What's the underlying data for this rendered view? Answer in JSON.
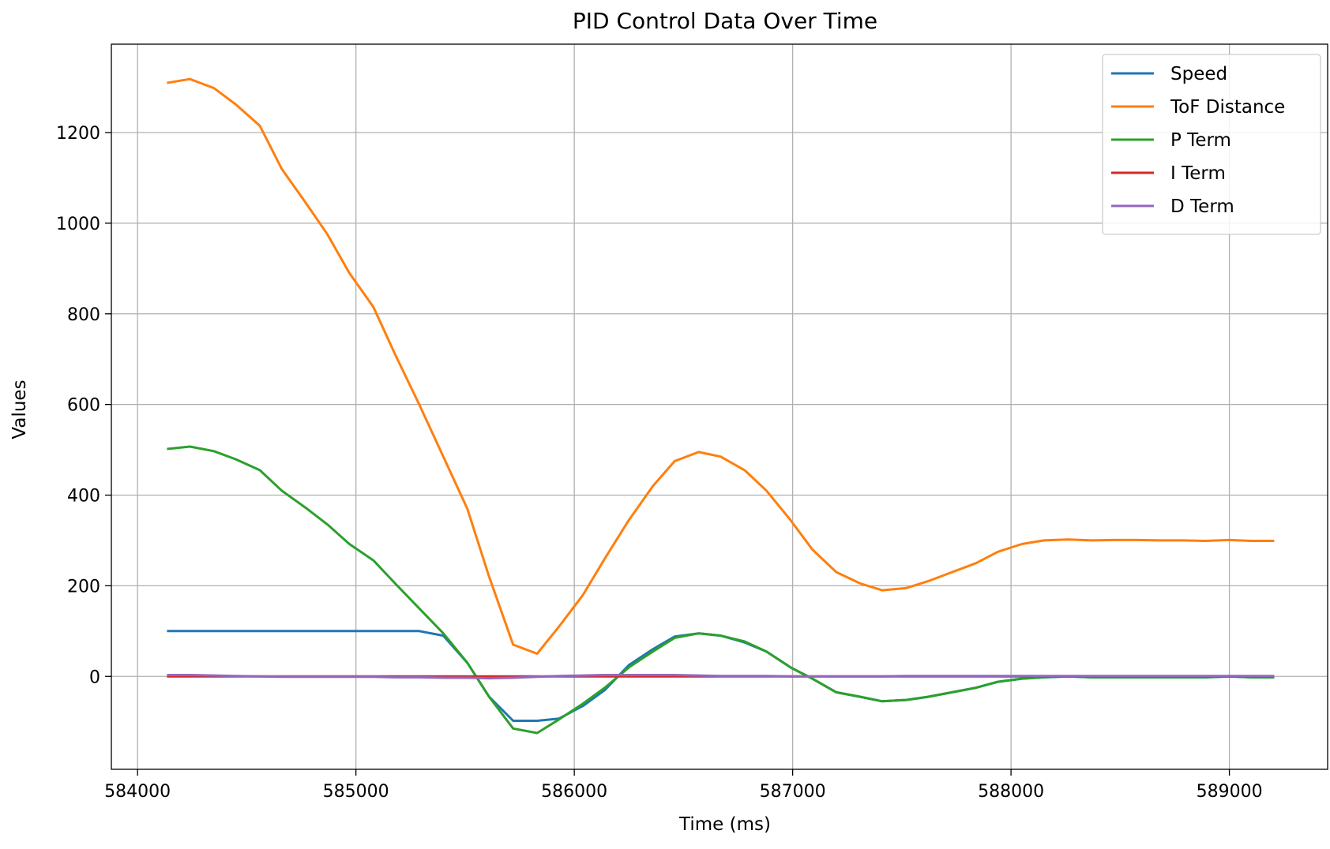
{
  "chart_data": {
    "type": "line",
    "title": "PID Control Data Over Time",
    "xlabel": "Time (ms)",
    "ylabel": "Values",
    "xlim": [
      583880,
      589450
    ],
    "ylim": [
      -205,
      1395
    ],
    "x_ticks": [
      584000,
      585000,
      586000,
      587000,
      588000,
      589000
    ],
    "y_ticks": [
      0,
      200,
      400,
      600,
      800,
      1000,
      1200
    ],
    "grid": true,
    "legend_position": "top-right",
    "x": [
      584140,
      584240,
      584350,
      584450,
      584560,
      584660,
      584770,
      584870,
      584970,
      585080,
      585180,
      585290,
      585400,
      585510,
      585610,
      585720,
      585830,
      585930,
      586040,
      586140,
      586250,
      586360,
      586460,
      586570,
      586670,
      586780,
      586880,
      586990,
      587090,
      587200,
      587310,
      587410,
      587520,
      587620,
      587730,
      587840,
      587940,
      588050,
      588150,
      588260,
      588370,
      588470,
      588580,
      588680,
      588790,
      588890,
      589000,
      589100,
      589200
    ],
    "series": [
      {
        "name": "Speed",
        "color": "#1f77b4",
        "values": [
          100,
          100,
          100,
          100,
          100,
          100,
          100,
          100,
          100,
          100,
          100,
          100,
          90,
          30,
          -45,
          -98,
          -98,
          -93,
          -65,
          -30,
          25,
          60,
          88,
          95,
          90,
          75,
          55,
          20,
          -5,
          -35,
          -45,
          -55,
          -52,
          -45,
          -35,
          -25,
          -12,
          -5,
          -2,
          0,
          -2,
          -2,
          -2,
          -2,
          -2,
          -2,
          0,
          -2,
          -2
        ]
      },
      {
        "name": "ToF Distance",
        "color": "#ff7f0e",
        "values": [
          1310,
          1318,
          1298,
          1262,
          1215,
          1120,
          1045,
          975,
          890,
          815,
          710,
          600,
          485,
          370,
          220,
          70,
          50,
          110,
          180,
          260,
          345,
          420,
          475,
          495,
          485,
          455,
          410,
          345,
          280,
          230,
          205,
          190,
          195,
          210,
          230,
          250,
          275,
          292,
          300,
          302,
          300,
          301,
          301,
          300,
          300,
          299,
          301,
          299,
          299
        ]
      },
      {
        "name": "P Term",
        "color": "#2ca02c",
        "values": [
          502,
          507,
          497,
          479,
          455,
          410,
          372,
          335,
          292,
          256,
          205,
          150,
          95,
          30,
          -45,
          -115,
          -125,
          -95,
          -60,
          -25,
          20,
          55,
          85,
          95,
          90,
          77,
          55,
          20,
          -5,
          -35,
          -45,
          -55,
          -52,
          -45,
          -35,
          -25,
          -12,
          -5,
          -2,
          0,
          -2,
          -2,
          -2,
          -2,
          -2,
          -2,
          0,
          -2,
          -2
        ]
      },
      {
        "name": "I Term",
        "color": "#d62728",
        "values": [
          0,
          0,
          0,
          0,
          0,
          0,
          0,
          0,
          0,
          0,
          0,
          0,
          0,
          0,
          0,
          0,
          0,
          0,
          0,
          0,
          0,
          0,
          0,
          0,
          0,
          0,
          0,
          0,
          0,
          0,
          0,
          0,
          0,
          0,
          0,
          0,
          0,
          0,
          0,
          0,
          0,
          0,
          0,
          0,
          0,
          0,
          0,
          0,
          0
        ]
      },
      {
        "name": "D Term",
        "color": "#9467bd",
        "values": [
          3,
          3,
          2,
          1,
          0,
          -1,
          -1,
          -1,
          -1,
          -1,
          -2,
          -2,
          -3,
          -3,
          -4,
          -3,
          -1,
          1,
          2,
          3,
          3,
          3,
          3,
          2,
          1,
          1,
          1,
          0,
          0,
          0,
          0,
          0,
          1,
          1,
          1,
          1,
          1,
          1,
          1,
          1,
          1,
          1,
          1,
          1,
          1,
          1,
          1,
          1,
          1
        ]
      }
    ]
  }
}
